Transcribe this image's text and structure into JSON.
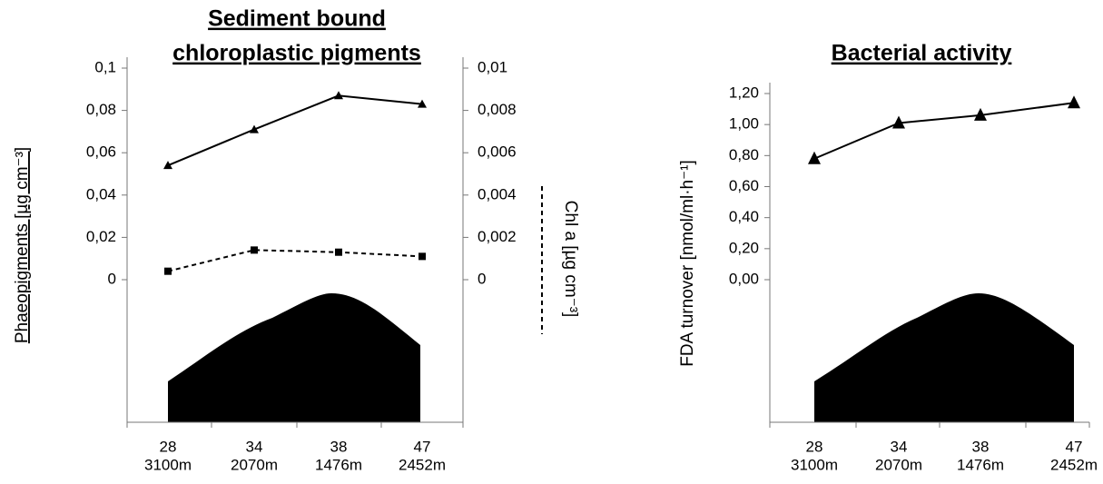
{
  "chart_data": [
    {
      "type": "line",
      "title": [
        "Sediment bound",
        "chloroplastic pigments"
      ],
      "y_label": "Phaeopigments [µg cm⁻³]",
      "y2_label": "Chl a [µg cm⁻³]",
      "categories": [
        "28",
        "34",
        "38",
        "47"
      ],
      "depths": [
        "3100m",
        "2070m",
        "1476m",
        "2452m"
      ],
      "ylim": [
        0,
        0.1
      ],
      "yticks": [
        0,
        {
          "value": 0.02,
          "label": "0,02"
        },
        {
          "value": 0.04,
          "label": "0,04"
        },
        {
          "value": 0.06,
          "label": "0,06"
        },
        {
          "value": 0.08,
          "label": "0,08"
        },
        {
          "value": 0.1,
          "label": "0,1"
        }
      ],
      "y2lim": [
        0,
        0.01
      ],
      "y2ticks": [
        0,
        {
          "value": 0.002,
          "label": "0,002"
        },
        {
          "value": 0.004,
          "label": "0,004"
        },
        {
          "value": 0.006,
          "label": "0,006"
        },
        {
          "value": 0.008,
          "label": "0,008"
        },
        {
          "value": 0.01,
          "label": "0,01"
        }
      ],
      "series": [
        {
          "color": "#000000",
          "line_style": "solid",
          "marker": "triangle",
          "values": [
            0.054,
            0.071,
            0.087,
            0.083
          ]
        },
        {
          "color": "#000000",
          "line_style": "dashed",
          "marker": "square",
          "axis": "y2",
          "values": [
            0.0004,
            0.0014,
            0.0013,
            0.0011
          ]
        }
      ]
    },
    {
      "type": "line",
      "title": [
        "Bacterial activity"
      ],
      "y_label": "FDA turnover [nmol/ml·h⁻¹]",
      "categories": [
        "28",
        "34",
        "38",
        "47"
      ],
      "depths": [
        "3100m",
        "2070m",
        "1476m",
        "2452m"
      ],
      "ylim": [
        0,
        1.2
      ],
      "yticks": [
        {
          "value": 0,
          "label": "0,00"
        },
        {
          "value": 0.2,
          "label": "0,20"
        },
        {
          "value": 0.4,
          "label": "0,40"
        },
        {
          "value": 0.6,
          "label": "0,60"
        },
        {
          "value": 0.8,
          "label": "0,80"
        },
        {
          "value": 1,
          "label": "1,00"
        },
        {
          "value": 1.2,
          "label": "1,20"
        }
      ],
      "series": [
        {
          "color": "#000000",
          "line_style": "solid",
          "marker": "big-triangle",
          "values": [
            0.78,
            1.01,
            1.06,
            1.14
          ]
        }
      ]
    }
  ]
}
